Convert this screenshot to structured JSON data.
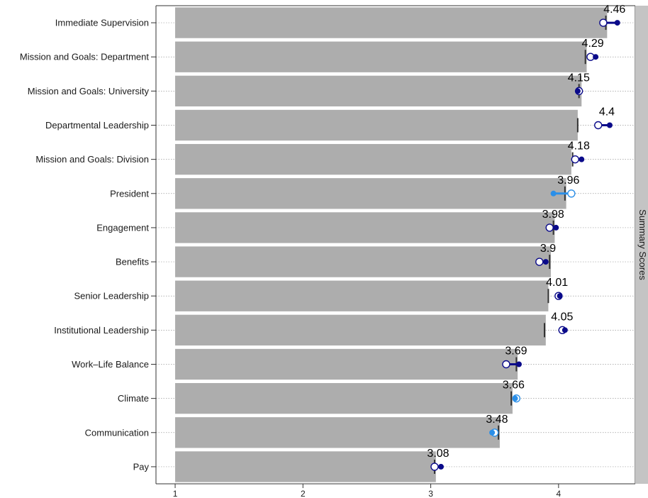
{
  "chart_data": {
    "type": "bar",
    "orientation": "horizontal",
    "panel_label": "Summary Scores",
    "xlim": [
      0.85,
      4.6
    ],
    "x_ticks": [
      1,
      2,
      3,
      4
    ],
    "grid": "dotted horizontal",
    "bar_baseline": 1,
    "categories": [
      "Immediate Supervision",
      "Mission and Goals: Department",
      "Mission and Goals: University",
      "Departmental Leadership",
      "Mission and Goals: Division",
      "President",
      "Engagement",
      "Benefits",
      "Senior Leadership",
      "Institutional Leadership",
      "Work–Life Balance",
      "Climate",
      "Communication",
      "Pay"
    ],
    "series": [
      {
        "values": [
          4.38,
          4.22,
          4.18,
          4.15,
          4.1,
          4.06,
          3.97,
          3.94,
          3.92,
          3.9,
          3.68,
          3.64,
          3.54,
          3.04
        ]
      },
      {
        "values": [
          4.37,
          4.21,
          4.16,
          4.15,
          4.11,
          4.05,
          3.96,
          3.93,
          3.92,
          3.89,
          3.67,
          3.63,
          3.53,
          3.03
        ]
      },
      {
        "values": [
          4.35,
          4.25,
          4.16,
          4.31,
          4.13,
          4.1,
          3.93,
          3.85,
          4,
          4.03,
          3.59,
          3.67,
          3.5,
          3.03
        ]
      },
      {
        "values": [
          4.46,
          4.29,
          4.15,
          4.4,
          4.18,
          3.96,
          3.98,
          3.9,
          4.01,
          4.05,
          3.69,
          3.66,
          3.48,
          3.08
        ]
      }
    ],
    "value_labels": [
      "4.46",
      "4.29",
      "4.15",
      "4.4",
      "4.18",
      "3.96",
      "3.98",
      "3.9",
      "4.01",
      "4.05",
      "3.69",
      "3.66",
      "3.48",
      "3.08"
    ],
    "point_colors": [
      "#0a0a8a",
      "#0a0a8a",
      "#0a0a8a",
      "#0a0a8a",
      "#0a0a8a",
      "#2b8fe8",
      "#0a0a8a",
      "#0a0a8a",
      "#0a0a8a",
      "#0a0a8a",
      "#0a0a8a",
      "#2b8fe8",
      "#2b8fe8",
      "#0a0a8a"
    ],
    "colors": {
      "bar": "#adadad",
      "strip": "#c4c4c4",
      "benchmark_line": "#333333",
      "grid": "#9a9a9a",
      "axis": "#333333"
    }
  }
}
